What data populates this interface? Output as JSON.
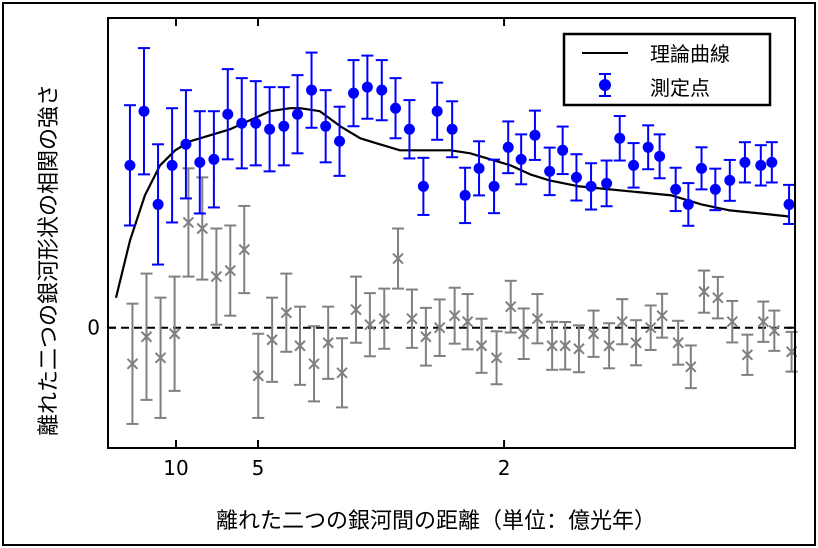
{
  "chart_data": {
    "type": "scatter",
    "title": "",
    "xlabel": "離れた二つの銀河間の距離（単位：億光年）",
    "ylabel": "離れた二つの銀河形状の相関の強さ",
    "x_scale": "reciprocal",
    "xlim": [
      58.5,
      1.17
    ],
    "ylim": [
      -0.4,
      1.03
    ],
    "x_ticks": [
      {
        "value": 10,
        "label": "10"
      },
      {
        "value": 5,
        "label": "5"
      },
      {
        "value": 2,
        "label": "2"
      }
    ],
    "y_ticks": [
      {
        "value": 0,
        "label": "0"
      }
    ],
    "zero_line": {
      "value": 0,
      "style": "dashed"
    },
    "grid": false,
    "legend_placement": "top-right",
    "legend": [
      {
        "label": "理論曲線",
        "kind": "line",
        "color": "#000000"
      },
      {
        "label": "測定点",
        "kind": "errorbar-marker",
        "color": "#0000ff"
      }
    ],
    "x": [
      22.8,
      16.4,
      12.8,
      10.5,
      8.92,
      7.75,
      6.84,
      6.13,
      5.55,
      5.07,
      4.67,
      4.32,
      4.03,
      3.77,
      3.54,
      3.34,
      3.16,
      3.0,
      2.85,
      2.72,
      2.6,
      2.49,
      2.39,
      2.29,
      2.21,
      2.13,
      2.05,
      1.98,
      1.92,
      1.86,
      1.8,
      1.75,
      1.7,
      1.65,
      1.6,
      1.56,
      1.52,
      1.48,
      1.45,
      1.41,
      1.38,
      1.35,
      1.32,
      1.29,
      1.26,
      1.23,
      1.21,
      1.18
    ],
    "series": [
      {
        "name": "測定点",
        "kind": "errorbar",
        "marker": "circle",
        "color": "#0000ff",
        "values": [
          0.54,
          0.72,
          0.41,
          0.54,
          0.61,
          0.55,
          0.56,
          0.71,
          0.68,
          0.68,
          0.66,
          0.67,
          0.71,
          0.79,
          0.67,
          0.62,
          0.78,
          0.8,
          0.79,
          0.73,
          0.66,
          0.47,
          0.72,
          0.66,
          0.44,
          0.53,
          0.47,
          0.6,
          0.56,
          0.64,
          0.52,
          0.59,
          0.5,
          0.47,
          0.48,
          0.63,
          0.54,
          0.6,
          0.57,
          0.46,
          0.41,
          0.53,
          0.46,
          0.49,
          0.55,
          0.54,
          0.55,
          0.41
        ],
        "errors": [
          0.2,
          0.21,
          0.2,
          0.19,
          0.18,
          0.17,
          0.16,
          0.15,
          0.15,
          0.14,
          0.14,
          0.13,
          0.13,
          0.125,
          0.12,
          0.115,
          0.11,
          0.105,
          0.1,
          0.1,
          0.097,
          0.095,
          0.095,
          0.093,
          0.092,
          0.09,
          0.089,
          0.086,
          0.083,
          0.082,
          0.079,
          0.079,
          0.077,
          0.077,
          0.076,
          0.074,
          0.074,
          0.073,
          0.073,
          0.072,
          0.071,
          0.07,
          0.069,
          0.068,
          0.067,
          0.067,
          0.067,
          0.065
        ]
      },
      {
        "kind": "errorbar",
        "marker": "x",
        "color": "#808080",
        "values": [
          -0.12,
          -0.03,
          -0.1,
          -0.02,
          0.35,
          0.33,
          0.17,
          0.19,
          0.26,
          -0.16,
          -0.04,
          0.05,
          -0.06,
          -0.12,
          -0.05,
          -0.15,
          0.06,
          0.01,
          0.03,
          0.23,
          0.03,
          -0.03,
          0.0,
          0.04,
          0.02,
          -0.06,
          -0.1,
          0.07,
          -0.02,
          0.03,
          -0.06,
          -0.06,
          -0.07,
          -0.02,
          -0.06,
          0.02,
          -0.05,
          0.0,
          0.04,
          -0.05,
          -0.13,
          0.12,
          0.1,
          0.02,
          -0.09,
          0.02,
          -0.01,
          -0.08
        ],
        "errors": [
          0.2,
          0.21,
          0.2,
          0.19,
          0.18,
          0.17,
          0.16,
          0.15,
          0.145,
          0.14,
          0.14,
          0.13,
          0.13,
          0.125,
          0.12,
          0.115,
          0.11,
          0.105,
          0.1,
          0.1,
          0.097,
          0.096,
          0.094,
          0.093,
          0.092,
          0.09,
          0.088,
          0.086,
          0.084,
          0.082,
          0.08,
          0.079,
          0.078,
          0.077,
          0.075,
          0.075,
          0.075,
          0.074,
          0.073,
          0.073,
          0.071,
          0.07,
          0.069,
          0.069,
          0.067,
          0.067,
          0.067,
          0.066
        ]
      },
      {
        "name": "理論曲線",
        "kind": "line",
        "color": "#000000",
        "x": [
          37.3,
          22.8,
          16.1,
          12.4,
          10.1,
          8.54,
          7.07,
          6.03,
          5.26,
          4.66,
          4.18,
          3.98,
          3.63,
          3.33,
          3.08,
          2.87,
          2.68,
          2.52,
          2.3,
          2.18,
          2.07,
          1.97,
          1.88,
          1.8,
          1.69,
          1.59,
          1.5,
          1.42,
          1.35,
          1.29,
          1.23,
          1.18
        ],
        "values": [
          0.1,
          0.29,
          0.44,
          0.54,
          0.59,
          0.62,
          0.64,
          0.66,
          0.69,
          0.72,
          0.73,
          0.73,
          0.72,
          0.67,
          0.63,
          0.61,
          0.59,
          0.59,
          0.59,
          0.58,
          0.56,
          0.54,
          0.51,
          0.49,
          0.47,
          0.46,
          0.45,
          0.44,
          0.41,
          0.39,
          0.38,
          0.37
        ]
      }
    ]
  }
}
